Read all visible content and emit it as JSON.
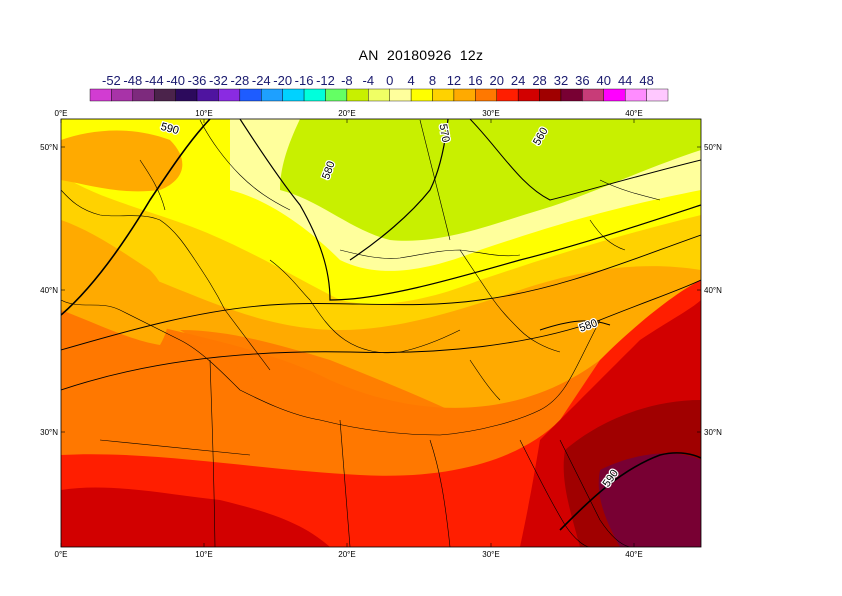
{
  "title": {
    "run": "AN",
    "date": "20180926",
    "time": "12z"
  },
  "colorbar": {
    "labels": [
      "-52",
      "-48",
      "-44",
      "-40",
      "-36",
      "-32",
      "-28",
      "-24",
      "-20",
      "-16",
      "-12",
      "-8",
      "-4",
      "0",
      "4",
      "8",
      "12",
      "16",
      "20",
      "24",
      "28",
      "32",
      "36",
      "40",
      "44",
      "48"
    ],
    "colors": [
      "#d23cd2",
      "#a833a8",
      "#7d2a7d",
      "#4b234b",
      "#2c0a5c",
      "#4f14a0",
      "#8a2be2",
      "#1e5cff",
      "#1ea0ff",
      "#00d2ff",
      "#00ffdc",
      "#64ff64",
      "#c8f000",
      "#f0ff64",
      "#ffff9c",
      "#ffff00",
      "#ffd200",
      "#ffaa00",
      "#ff7800",
      "#ff1e00",
      "#d20000",
      "#a00000",
      "#780033",
      "#c83c78",
      "#ff00ff",
      "#ff8cff",
      "#ffc8ff"
    ]
  },
  "map": {
    "lon_labels": [
      "0°E",
      "10°E",
      "20°E",
      "30°E",
      "40°E"
    ],
    "lat_labels": [
      "50°N",
      "40°N",
      "30°N"
    ],
    "contour_labels": [
      "590",
      "580",
      "570",
      "560",
      "580",
      "590"
    ]
  }
}
